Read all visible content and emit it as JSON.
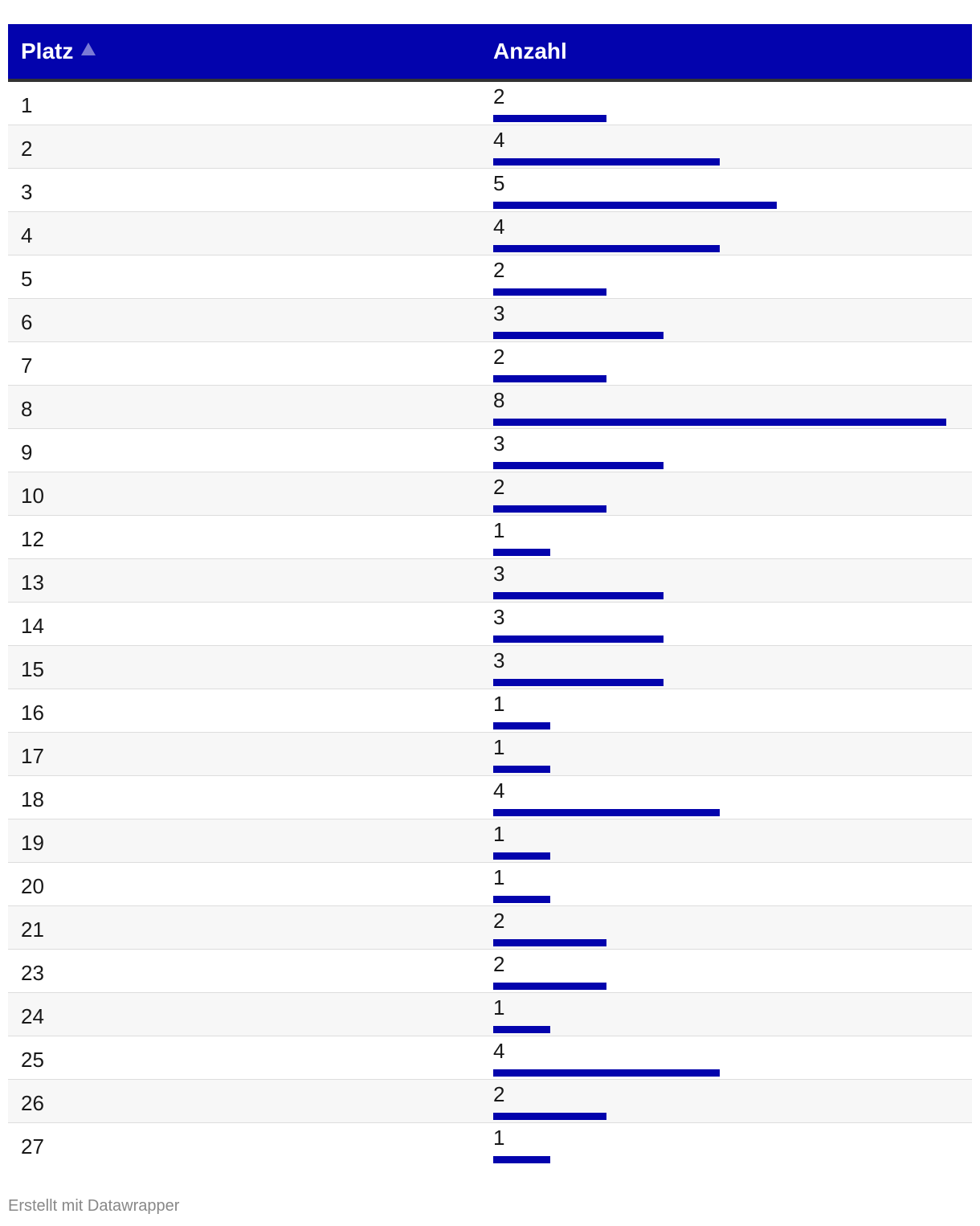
{
  "table": {
    "headers": {
      "platz": "Platz",
      "anzahl": "Anzahl"
    },
    "sort": "ascending",
    "bar_color": "#0303ad",
    "header_bg": "#0303ad"
  },
  "chart_data": {
    "type": "table",
    "columns": [
      "Platz",
      "Anzahl"
    ],
    "rows": [
      {
        "platz": "1",
        "anzahl": 2
      },
      {
        "platz": "2",
        "anzahl": 4
      },
      {
        "platz": "3",
        "anzahl": 5
      },
      {
        "platz": "4",
        "anzahl": 4
      },
      {
        "platz": "5",
        "anzahl": 2
      },
      {
        "platz": "6",
        "anzahl": 3
      },
      {
        "platz": "7",
        "anzahl": 2
      },
      {
        "platz": "8",
        "anzahl": 8
      },
      {
        "platz": "9",
        "anzahl": 3
      },
      {
        "platz": "10",
        "anzahl": 2
      },
      {
        "platz": "12",
        "anzahl": 1
      },
      {
        "platz": "13",
        "anzahl": 3
      },
      {
        "platz": "14",
        "anzahl": 3
      },
      {
        "platz": "15",
        "anzahl": 3
      },
      {
        "platz": "16",
        "anzahl": 1
      },
      {
        "platz": "17",
        "anzahl": 1
      },
      {
        "platz": "18",
        "anzahl": 4
      },
      {
        "platz": "19",
        "anzahl": 1
      },
      {
        "platz": "20",
        "anzahl": 1
      },
      {
        "platz": "21",
        "anzahl": 2
      },
      {
        "platz": "23",
        "anzahl": 2
      },
      {
        "platz": "24",
        "anzahl": 1
      },
      {
        "platz": "25",
        "anzahl": 4
      },
      {
        "platz": "26",
        "anzahl": 2
      },
      {
        "platz": "27",
        "anzahl": 1
      }
    ],
    "bar_max": 8
  },
  "footer": {
    "credit": "Erstellt mit Datawrapper"
  }
}
